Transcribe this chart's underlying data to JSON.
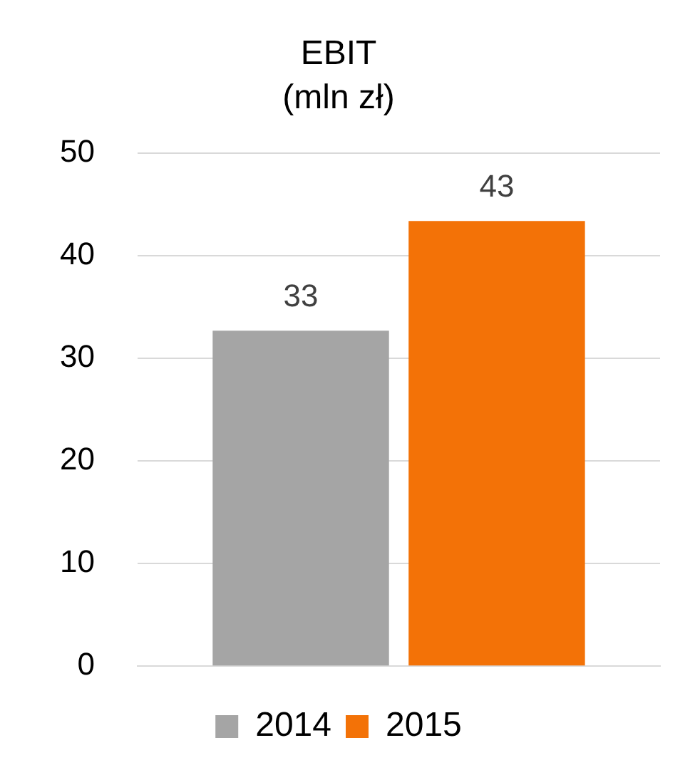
{
  "chart_data": {
    "type": "bar",
    "title": "EBIT",
    "subtitle": "(mln zł)",
    "categories": [
      null
    ],
    "series": [
      {
        "name": "2014",
        "color": "#a5a5a5",
        "values": [
          32.7
        ],
        "value_labels": [
          "33"
        ]
      },
      {
        "name": "2015",
        "color": "#f37207",
        "values": [
          43.4
        ],
        "value_labels": [
          "43"
        ]
      }
    ],
    "ylim": [
      0,
      50
    ],
    "yticks": [
      0,
      10,
      20,
      30,
      40,
      50
    ],
    "grid": "y",
    "legend": "bottom"
  }
}
